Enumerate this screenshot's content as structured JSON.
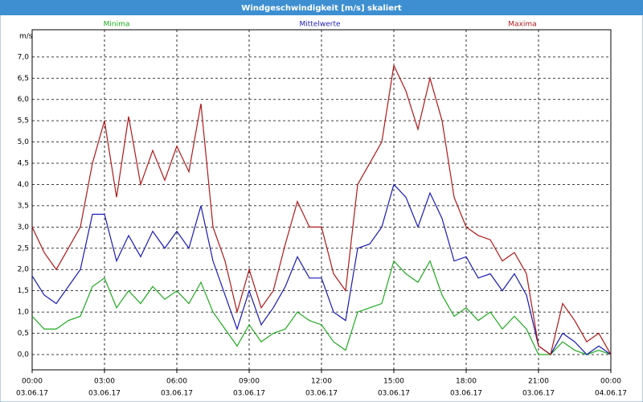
{
  "chart_data": {
    "type": "line",
    "title": "Windgeschwindigkeit [m/s] skaliert",
    "y_unit": "m/s",
    "x": [
      0,
      0.5,
      1,
      1.5,
      2,
      2.5,
      3,
      3.5,
      4,
      4.5,
      5,
      5.5,
      6,
      6.5,
      7,
      7.5,
      8,
      8.5,
      9,
      9.5,
      10,
      10.5,
      11,
      11.5,
      12,
      12.5,
      13,
      13.5,
      14,
      14.5,
      15,
      15.5,
      16,
      16.5,
      17,
      17.5,
      18,
      18.5,
      19,
      19.5,
      20,
      20.5,
      21,
      21.5,
      22,
      22.5,
      23,
      23.5,
      24
    ],
    "series": [
      {
        "name": "Minima",
        "color": "#1faa1f",
        "values": [
          0.9,
          0.6,
          0.6,
          0.8,
          0.9,
          1.6,
          1.8,
          1.1,
          1.5,
          1.2,
          1.6,
          1.3,
          1.5,
          1.2,
          1.7,
          1.0,
          0.6,
          0.2,
          0.7,
          0.3,
          0.5,
          0.6,
          1.0,
          0.8,
          0.7,
          0.3,
          0.1,
          1.0,
          1.1,
          1.2,
          2.2,
          1.9,
          1.7,
          2.2,
          1.4,
          0.9,
          1.1,
          0.8,
          1.0,
          0.6,
          0.9,
          0.6,
          0.0,
          0.0,
          0.3,
          0.1,
          0.0,
          0.1,
          0.0
        ]
      },
      {
        "name": "Mittelwerte",
        "color": "#1a1ab4",
        "values": [
          1.85,
          1.4,
          1.2,
          1.6,
          2.0,
          3.3,
          3.3,
          2.2,
          2.8,
          2.3,
          2.9,
          2.5,
          2.9,
          2.5,
          3.5,
          2.2,
          1.4,
          0.6,
          1.5,
          0.7,
          1.1,
          1.6,
          2.3,
          1.8,
          1.8,
          1.0,
          0.8,
          2.5,
          2.6,
          3.0,
          4.0,
          3.7,
          3.0,
          3.8,
          3.2,
          2.2,
          2.3,
          1.8,
          1.9,
          1.5,
          1.9,
          1.4,
          0.2,
          0.0,
          0.5,
          0.3,
          0.0,
          0.2,
          0.0
        ]
      },
      {
        "name": "Maxima",
        "color": "#b01818",
        "values": [
          3.0,
          2.4,
          2.0,
          2.5,
          3.0,
          4.5,
          5.5,
          3.7,
          5.6,
          4.0,
          4.8,
          4.1,
          4.9,
          4.3,
          5.9,
          3.0,
          2.2,
          1.0,
          2.0,
          1.1,
          1.5,
          2.6,
          3.6,
          3.0,
          3.0,
          1.9,
          1.5,
          4.0,
          4.5,
          5.0,
          6.8,
          6.2,
          5.3,
          6.5,
          5.5,
          3.7,
          3.0,
          2.8,
          2.7,
          2.2,
          2.4,
          1.9,
          0.2,
          0.0,
          1.2,
          0.8,
          0.3,
          0.5,
          0.0
        ]
      }
    ],
    "xlim": [
      0,
      24
    ],
    "xticks": [
      {
        "value": 0,
        "label": "00:00",
        "date": "03.06.17"
      },
      {
        "value": 3,
        "label": "03:00",
        "date": "03.06.17"
      },
      {
        "value": 6,
        "label": "06:00",
        "date": "03.06.17"
      },
      {
        "value": 9,
        "label": "09:00",
        "date": "03.06.17"
      },
      {
        "value": 12,
        "label": "12:00",
        "date": "03.06.17"
      },
      {
        "value": 15,
        "label": "15:00",
        "date": "03.06.17"
      },
      {
        "value": 18,
        "label": "18:00",
        "date": "03.06.17"
      },
      {
        "value": 21,
        "label": "21:00",
        "date": "03.06.17"
      },
      {
        "value": 24,
        "label": "00:00",
        "date": "04.06.17"
      }
    ],
    "ylim": [
      -0.36,
      7.64
    ],
    "yticks": [
      {
        "value": 0,
        "label": "0,0"
      },
      {
        "value": 0.5,
        "label": "0,5"
      },
      {
        "value": 1,
        "label": "1,0"
      },
      {
        "value": 1.5,
        "label": "1,5"
      },
      {
        "value": 2,
        "label": "2,0"
      },
      {
        "value": 2.5,
        "label": "2,5"
      },
      {
        "value": 3,
        "label": "3,0"
      },
      {
        "value": 3.5,
        "label": "3,5"
      },
      {
        "value": 4,
        "label": "4,0"
      },
      {
        "value": 4.5,
        "label": "4,5"
      },
      {
        "value": 5,
        "label": "5,0"
      },
      {
        "value": 5.5,
        "label": "5,5"
      },
      {
        "value": 6,
        "label": "6,0"
      },
      {
        "value": 6.5,
        "label": "6,5"
      },
      {
        "value": 7,
        "label": "7,0"
      }
    ],
    "grid": true
  }
}
